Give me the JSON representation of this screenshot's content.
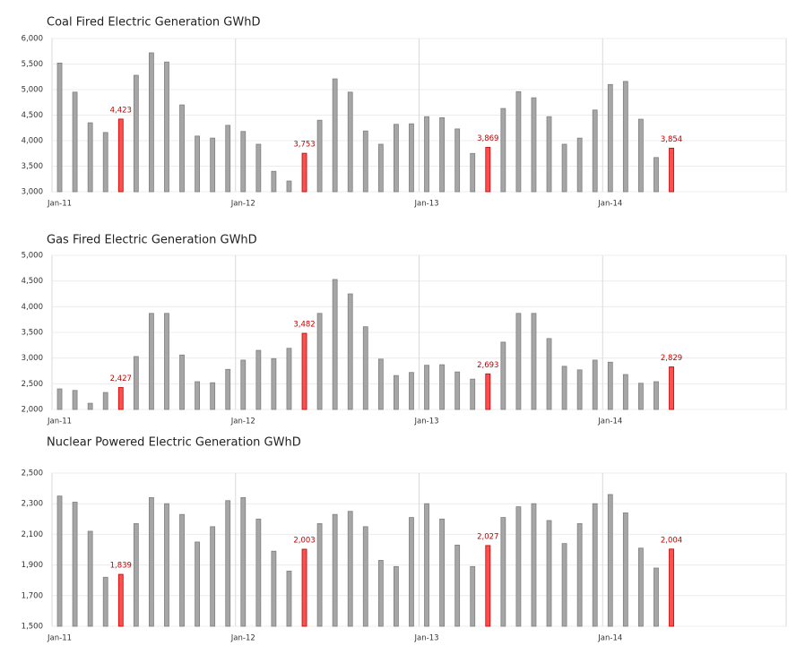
{
  "chart_data": [
    {
      "type": "bar",
      "title": "Coal Fired Electric Generation GWhD",
      "categories": [
        "Jan-11",
        null,
        null,
        null,
        null,
        null,
        null,
        null,
        null,
        null,
        null,
        null,
        "Jan-12",
        null,
        null,
        null,
        null,
        null,
        null,
        null,
        null,
        null,
        null,
        null,
        "Jan-13",
        null,
        null,
        null,
        null,
        null,
        null,
        null,
        null,
        null,
        null,
        null,
        "Jan-14",
        null,
        null,
        null,
        null
      ],
      "values": [
        5520,
        4950,
        4350,
        4160,
        4423,
        5280,
        5720,
        5540,
        4700,
        4090,
        4050,
        4300,
        4180,
        3930,
        3400,
        3210,
        3753,
        4400,
        5210,
        4950,
        4190,
        3930,
        4320,
        4330,
        4470,
        4450,
        4230,
        3750,
        3869,
        4630,
        4960,
        4840,
        4470,
        3930,
        4050,
        4600,
        5100,
        5160,
        4420,
        3670,
        3854
      ],
      "value_labels": [
        null,
        null,
        null,
        null,
        "4,423",
        null,
        null,
        null,
        null,
        null,
        null,
        null,
        null,
        null,
        null,
        null,
        "3,753",
        null,
        null,
        null,
        null,
        null,
        null,
        null,
        null,
        null,
        null,
        null,
        "3,869",
        null,
        null,
        null,
        null,
        null,
        null,
        null,
        null,
        null,
        null,
        null,
        "3,854"
      ],
      "color": "#a6a6a6",
      "highlight_color": "#ff4f4f",
      "ylim": [
        3000,
        6000
      ],
      "yticks": [
        {
          "value": 3000,
          "label": "3,000"
        },
        {
          "value": 3500,
          "label": "3,500"
        },
        {
          "value": 4000,
          "label": "4,000"
        },
        {
          "value": 4500,
          "label": "4,500"
        },
        {
          "value": 5000,
          "label": "5,000"
        },
        {
          "value": 5500,
          "label": "5,500"
        },
        {
          "value": 6000,
          "label": "6,000"
        }
      ],
      "grid": true
    },
    {
      "type": "bar",
      "title": "Gas Fired Electric Generation GWhD",
      "categories": [
        "Jan-11",
        null,
        null,
        null,
        null,
        null,
        null,
        null,
        null,
        null,
        null,
        null,
        "Jan-12",
        null,
        null,
        null,
        null,
        null,
        null,
        null,
        null,
        null,
        null,
        null,
        "Jan-13",
        null,
        null,
        null,
        null,
        null,
        null,
        null,
        null,
        null,
        null,
        null,
        "Jan-14",
        null,
        null,
        null,
        null
      ],
      "values": [
        2400,
        2370,
        2120,
        2330,
        2427,
        3030,
        3870,
        3870,
        3060,
        2540,
        2520,
        2780,
        2960,
        3150,
        2990,
        3190,
        3482,
        3870,
        4530,
        4250,
        3610,
        2980,
        2660,
        2720,
        2860,
        2870,
        2730,
        2590,
        2693,
        3310,
        3870,
        3870,
        3380,
        2840,
        2770,
        2960,
        2920,
        2680,
        2510,
        2540,
        2829
      ],
      "value_labels": [
        null,
        null,
        null,
        null,
        "2,427",
        null,
        null,
        null,
        null,
        null,
        null,
        null,
        null,
        null,
        null,
        null,
        "3,482",
        null,
        null,
        null,
        null,
        null,
        null,
        null,
        null,
        null,
        null,
        null,
        "2,693",
        null,
        null,
        null,
        null,
        null,
        null,
        null,
        null,
        null,
        null,
        null,
        "2,829"
      ],
      "color": "#a6a6a6",
      "highlight_color": "#ff4f4f",
      "ylim": [
        2000,
        5000
      ],
      "yticks": [
        {
          "value": 2000,
          "label": "2,000"
        },
        {
          "value": 2500,
          "label": "2,500"
        },
        {
          "value": 3000,
          "label": "3,000"
        },
        {
          "value": 3500,
          "label": "3,500"
        },
        {
          "value": 4000,
          "label": "4,000"
        },
        {
          "value": 4500,
          "label": "4,500"
        },
        {
          "value": 5000,
          "label": "5,000"
        }
      ],
      "grid": true
    },
    {
      "type": "bar",
      "title": "Nuclear Powered Electric Generation GWhD",
      "categories": [
        "Jan-11",
        null,
        null,
        null,
        null,
        null,
        null,
        null,
        null,
        null,
        null,
        null,
        "Jan-12",
        null,
        null,
        null,
        null,
        null,
        null,
        null,
        null,
        null,
        null,
        null,
        "Jan-13",
        null,
        null,
        null,
        null,
        null,
        null,
        null,
        null,
        null,
        null,
        null,
        "Jan-14",
        null,
        null,
        null,
        null
      ],
      "values": [
        2350,
        2310,
        2120,
        1820,
        1839,
        2170,
        2340,
        2300,
        2230,
        2050,
        2150,
        2320,
        2340,
        2200,
        1990,
        1860,
        2003,
        2170,
        2230,
        2250,
        2150,
        1930,
        1890,
        2210,
        2300,
        2200,
        2030,
        1890,
        2027,
        2210,
        2280,
        2300,
        2190,
        2040,
        2170,
        2300,
        2360,
        2240,
        2010,
        1880,
        2004
      ],
      "value_labels": [
        null,
        null,
        null,
        null,
        "1,839",
        null,
        null,
        null,
        null,
        null,
        null,
        null,
        null,
        null,
        null,
        null,
        "2,003",
        null,
        null,
        null,
        null,
        null,
        null,
        null,
        null,
        null,
        null,
        null,
        "2,027",
        null,
        null,
        null,
        null,
        null,
        null,
        null,
        null,
        null,
        null,
        null,
        "2,004"
      ],
      "color": "#a6a6a6",
      "highlight_color": "#ff4f4f",
      "ylim": [
        1500,
        2500
      ],
      "yticks": [
        {
          "value": 1500,
          "label": "1,500"
        },
        {
          "value": 1700,
          "label": "1,700"
        },
        {
          "value": 1900,
          "label": "1,900"
        },
        {
          "value": 2100,
          "label": "2,100"
        },
        {
          "value": 2300,
          "label": "2,300"
        },
        {
          "value": 2500,
          "label": "2,500"
        }
      ],
      "grid": true
    }
  ]
}
